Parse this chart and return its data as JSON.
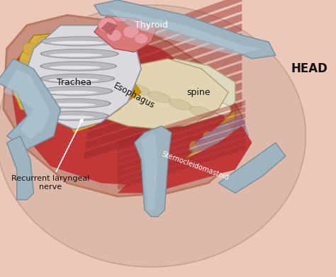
{
  "figsize": [
    4.74,
    3.91
  ],
  "dpi": 100,
  "labels": {
    "thyroid": "Thyroid",
    "trachea": "Trachea",
    "esophagus": "Esophagus",
    "spine": "spine",
    "sternocleidomastoid": "Sternocleidomastoid",
    "recurrent_nerve": "Recurrent laryngeal\nnerve",
    "head": "HEAD"
  },
  "colors": {
    "skin_bg": "#ecc8b8",
    "skin_inner": "#ddb8a8",
    "wound_fill": "#dca898",
    "muscle_red": "#c03838",
    "muscle_mid": "#b03030",
    "muscle_dark": "#982828",
    "muscle_light": "#cc5050",
    "trachea_white": "#d8dae0",
    "trachea_ring_mid": "#b8bac0",
    "trachea_ring_light": "#e8eaee",
    "trachea_ring_dark": "#909098",
    "thyroid_pink": "#d87878",
    "thyroid_light": "#e898a0",
    "esophagus_cream": "#e0d5b0",
    "esophagus_dark": "#c8b890",
    "fat_yellow": "#c8a030",
    "fat_yellow_mid": "#d8b040",
    "fat_yellow_light": "#e0c060",
    "fat_blob": "#d4aa48",
    "retractor": "#a0b4c0",
    "retractor_light": "#b8ccd8",
    "retractor_dark": "#7090a0",
    "spine_cream": "#ddd8c0",
    "spine_light": "#eee8d0",
    "blood_blue": "#9090c0",
    "blood_light": "#b0b8d0",
    "white_label": "#ffffff",
    "black_label": "#111111",
    "wound_edge": "#b87860"
  }
}
